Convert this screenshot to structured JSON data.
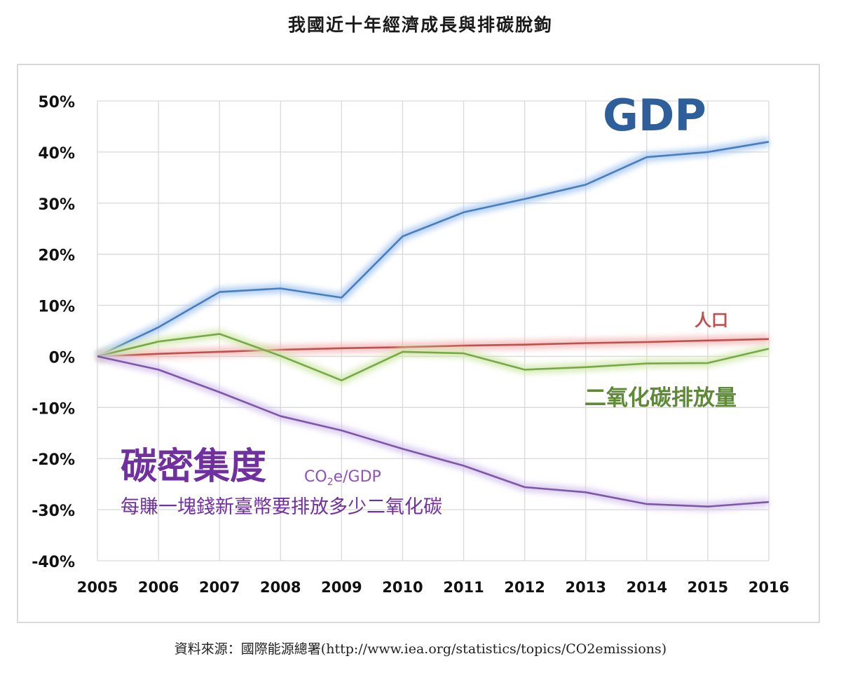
{
  "title": "我國近十年經濟成長與排碳脫鉤",
  "source": "資料來源：國際能源總署(http://www.iea.org/statistics/topics/CO2emissions)",
  "chart_data": {
    "type": "line",
    "x": [
      "2005",
      "2006",
      "2007",
      "2008",
      "2009",
      "2010",
      "2011",
      "2012",
      "2013",
      "2014",
      "2015",
      "2016"
    ],
    "ylim": [
      -40,
      50
    ],
    "yticks": [
      50,
      40,
      30,
      20,
      10,
      0,
      -10,
      -20,
      -30,
      -40
    ],
    "ytick_labels": [
      "50%",
      "40%",
      "30%",
      "20%",
      "10%",
      "0%",
      "-10%",
      "-20%",
      "-30%",
      "-40%"
    ],
    "grid": true,
    "series": [
      {
        "name": "GDP",
        "color": "#4a7ebb",
        "glow": "#9fc3f0",
        "values": [
          0,
          5.7,
          12.6,
          13.3,
          11.5,
          23.5,
          28.2,
          30.8,
          33.6,
          39.0,
          40.0,
          42.0
        ]
      },
      {
        "name": "人口",
        "color": "#c0504d",
        "glow": "#f2b3b3",
        "values": [
          0,
          0.5,
          0.9,
          1.3,
          1.6,
          1.8,
          2.1,
          2.3,
          2.6,
          2.8,
          3.1,
          3.4
        ]
      },
      {
        "name": "二氧化碳排放量",
        "color": "#77a94a",
        "glow": "#cfe7a6",
        "values": [
          0,
          2.9,
          4.4,
          0.1,
          -4.7,
          0.9,
          0.6,
          -2.6,
          -2.1,
          -1.4,
          -1.3,
          1.5
        ]
      },
      {
        "name": "碳密集度",
        "color": "#7e57a6",
        "glow": "#d3c0ec",
        "values": [
          0,
          -2.6,
          -7.0,
          -11.7,
          -14.5,
          -18.1,
          -21.4,
          -25.6,
          -26.6,
          -28.9,
          -29.4,
          -28.5
        ]
      }
    ],
    "annotations": {
      "gdp": "GDP",
      "population": "人口",
      "co2": "二氧化碳排放量",
      "intensity_title": "碳密集度",
      "intensity_unit_prefix": "CO",
      "intensity_unit_sub": "2",
      "intensity_unit_suffix": "e/GDP",
      "intensity_desc": "每賺一塊錢新臺幣要排放多少二氧化碳"
    }
  }
}
